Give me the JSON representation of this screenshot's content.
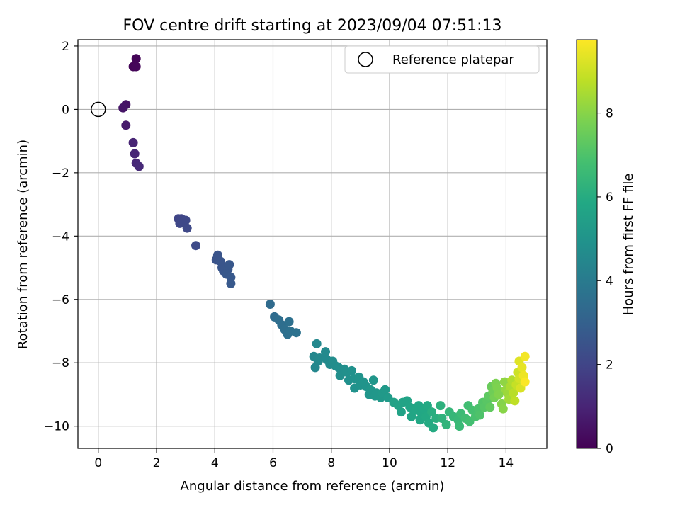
{
  "chart_data": {
    "type": "scatter",
    "title": "FOV centre drift starting at 2023/09/04 07:51:13",
    "xlabel": "Angular distance from reference (arcmin)",
    "ylabel": "Rotation from reference (arcmin)",
    "xlim": [
      -0.7,
      15.4
    ],
    "ylim": [
      -10.7,
      2.2
    ],
    "xticks": [
      0,
      2,
      4,
      6,
      8,
      10,
      12,
      14
    ],
    "yticks": [
      -10,
      -8,
      -6,
      -4,
      -2,
      0,
      2
    ],
    "grid": true,
    "legend": {
      "position": "top-right",
      "entries": [
        "Reference platepar"
      ]
    },
    "reference_point": {
      "x": 0,
      "y": 0
    },
    "colorbar": {
      "label": "Hours from first FF file",
      "range": [
        0,
        9.75
      ],
      "ticks": [
        0,
        2,
        4,
        6,
        8
      ],
      "colormap": "viridis"
    },
    "points": [
      [
        1.3,
        1.6,
        0.1
      ],
      [
        1.2,
        1.35,
        0.1
      ],
      [
        1.3,
        1.35,
        0.15
      ],
      [
        0.95,
        0.15,
        0.5
      ],
      [
        0.85,
        0.05,
        0.55
      ],
      [
        0.95,
        -0.5,
        0.7
      ],
      [
        1.2,
        -1.05,
        1.0
      ],
      [
        1.25,
        -1.4,
        1.05
      ],
      [
        1.3,
        -1.7,
        1.1
      ],
      [
        1.4,
        -1.8,
        1.15
      ],
      [
        2.75,
        -3.45,
        2.0
      ],
      [
        2.85,
        -3.45,
        2.02
      ],
      [
        2.95,
        -3.55,
        2.05
      ],
      [
        2.8,
        -3.6,
        2.08
      ],
      [
        3.0,
        -3.5,
        2.1
      ],
      [
        3.05,
        -3.75,
        2.12
      ],
      [
        3.35,
        -4.3,
        2.2
      ],
      [
        4.05,
        -4.75,
        2.5
      ],
      [
        4.1,
        -4.6,
        2.52
      ],
      [
        4.2,
        -4.8,
        2.55
      ],
      [
        4.25,
        -5.0,
        2.58
      ],
      [
        4.3,
        -5.1,
        2.6
      ],
      [
        4.45,
        -5.05,
        2.62
      ],
      [
        4.5,
        -4.9,
        2.65
      ],
      [
        4.4,
        -5.2,
        2.68
      ],
      [
        4.55,
        -5.3,
        2.7
      ],
      [
        4.55,
        -5.5,
        2.72
      ],
      [
        5.9,
        -6.15,
        3.4
      ],
      [
        6.05,
        -6.55,
        3.45
      ],
      [
        6.2,
        -6.65,
        3.5
      ],
      [
        6.3,
        -6.8,
        3.52
      ],
      [
        6.4,
        -6.95,
        3.55
      ],
      [
        6.5,
        -7.1,
        3.58
      ],
      [
        6.55,
        -6.7,
        3.6
      ],
      [
        6.6,
        -7.0,
        3.62
      ],
      [
        6.8,
        -7.05,
        3.65
      ],
      [
        7.4,
        -7.8,
        4.5
      ],
      [
        7.5,
        -7.4,
        4.52
      ],
      [
        7.55,
        -7.95,
        4.55
      ],
      [
        7.6,
        -7.85,
        4.58
      ],
      [
        7.45,
        -8.15,
        4.5
      ],
      [
        7.8,
        -7.65,
        4.6
      ],
      [
        7.85,
        -7.9,
        4.62
      ],
      [
        7.95,
        -8.05,
        4.65
      ],
      [
        8.05,
        -7.95,
        4.7
      ],
      [
        8.15,
        -8.1,
        4.72
      ],
      [
        8.25,
        -8.15,
        4.75
      ],
      [
        8.3,
        -8.4,
        4.78
      ],
      [
        8.45,
        -8.2,
        4.8
      ],
      [
        8.55,
        -8.3,
        4.82
      ],
      [
        8.6,
        -8.55,
        4.85
      ],
      [
        8.7,
        -8.25,
        4.88
      ],
      [
        8.8,
        -8.8,
        4.9
      ],
      [
        8.8,
        -8.5,
        4.92
      ],
      [
        8.95,
        -8.45,
        4.95
      ],
      [
        9.0,
        -8.7,
        4.98
      ],
      [
        9.1,
        -8.6,
        5.0
      ],
      [
        9.2,
        -8.75,
        5.02
      ],
      [
        9.3,
        -9.0,
        5.05
      ],
      [
        9.35,
        -8.85,
        5.08
      ],
      [
        9.45,
        -8.55,
        5.1
      ],
      [
        9.5,
        -9.05,
        5.12
      ],
      [
        9.55,
        -8.95,
        5.15
      ],
      [
        9.7,
        -9.1,
        5.18
      ],
      [
        9.75,
        -8.95,
        5.2
      ],
      [
        9.85,
        -8.85,
        5.22
      ],
      [
        9.95,
        -9.1,
        5.25
      ],
      [
        10.15,
        -9.25,
        5.55
      ],
      [
        10.3,
        -9.35,
        5.58
      ],
      [
        10.4,
        -9.55,
        5.6
      ],
      [
        10.45,
        -9.25,
        5.62
      ],
      [
        10.6,
        -9.2,
        5.65
      ],
      [
        10.7,
        -9.4,
        5.7
      ],
      [
        10.75,
        -9.7,
        5.72
      ],
      [
        10.9,
        -9.5,
        5.75
      ],
      [
        11.0,
        -9.35,
        5.78
      ],
      [
        11.05,
        -9.8,
        5.8
      ],
      [
        11.1,
        -9.6,
        5.82
      ],
      [
        11.2,
        -9.45,
        5.85
      ],
      [
        11.25,
        -9.7,
        5.88
      ],
      [
        11.3,
        -9.35,
        5.9
      ],
      [
        11.35,
        -9.9,
        5.92
      ],
      [
        11.5,
        -10.05,
        5.95
      ],
      [
        11.45,
        -9.55,
        6.05
      ],
      [
        11.6,
        -9.75,
        6.1
      ],
      [
        11.75,
        -9.35,
        6.2
      ],
      [
        11.8,
        -9.75,
        6.25
      ],
      [
        11.95,
        -9.95,
        6.3
      ],
      [
        12.05,
        -9.55,
        6.4
      ],
      [
        12.2,
        -9.7,
        6.45
      ],
      [
        12.35,
        -9.8,
        6.5
      ],
      [
        12.4,
        -10.0,
        6.55
      ],
      [
        12.45,
        -9.6,
        6.6
      ],
      [
        12.6,
        -9.75,
        6.7
      ],
      [
        12.7,
        -9.35,
        6.75
      ],
      [
        12.75,
        -9.85,
        6.8
      ],
      [
        12.85,
        -9.5,
        6.85
      ],
      [
        12.95,
        -9.7,
        6.9
      ],
      [
        13.05,
        -9.45,
        6.95
      ],
      [
        13.1,
        -9.65,
        7.0
      ],
      [
        13.2,
        -9.25,
        7.1
      ],
      [
        13.25,
        -9.4,
        7.15
      ],
      [
        13.35,
        -9.2,
        7.2
      ],
      [
        13.4,
        -9.05,
        7.3
      ],
      [
        13.45,
        -9.4,
        7.35
      ],
      [
        13.5,
        -8.75,
        7.5
      ],
      [
        13.55,
        -8.9,
        7.6
      ],
      [
        13.6,
        -9.1,
        7.7
      ],
      [
        13.65,
        -8.65,
        7.8
      ],
      [
        13.7,
        -8.8,
        7.85
      ],
      [
        13.75,
        -9.0,
        7.9
      ],
      [
        13.85,
        -9.3,
        7.95
      ],
      [
        13.9,
        -9.45,
        8.0
      ],
      [
        13.95,
        -8.6,
        8.1
      ],
      [
        14.0,
        -8.85,
        8.2
      ],
      [
        14.05,
        -8.95,
        8.3
      ],
      [
        14.1,
        -9.15,
        8.4
      ],
      [
        14.15,
        -8.75,
        8.5
      ],
      [
        14.2,
        -8.55,
        8.6
      ],
      [
        14.25,
        -8.95,
        8.7
      ],
      [
        14.3,
        -9.2,
        8.8
      ],
      [
        14.35,
        -8.7,
        8.9
      ],
      [
        14.4,
        -8.3,
        9.0
      ],
      [
        14.45,
        -8.5,
        9.1
      ],
      [
        14.45,
        -7.95,
        9.3
      ],
      [
        14.5,
        -8.8,
        9.2
      ],
      [
        14.55,
        -8.15,
        9.4
      ],
      [
        14.6,
        -8.4,
        9.5
      ],
      [
        14.65,
        -7.8,
        9.6
      ],
      [
        14.65,
        -8.6,
        9.7
      ]
    ]
  }
}
